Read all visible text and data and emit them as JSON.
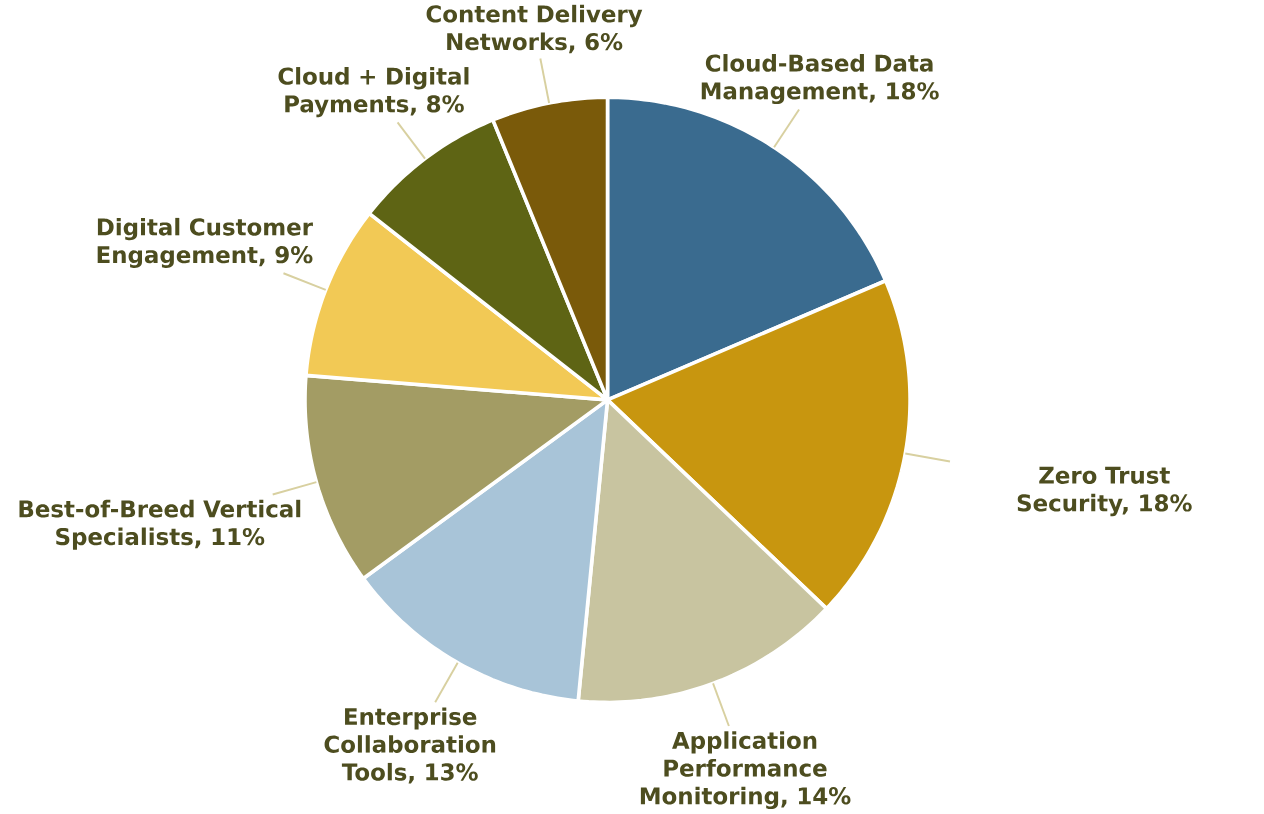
{
  "chart_data": {
    "type": "pie",
    "categories": [
      "Cloud-Based Data Management, 18%",
      "Zero Trust Security, 18%",
      "Application Performance Monitoring, 14%",
      "Enterprise Collaboration Tools, 13%",
      "Best-of-Breed Vertical Specialists, 11%",
      "Digital Customer Engagement, 9%",
      "Cloud + Digital Payments, 8%",
      "Content Delivery Networks, 6%"
    ],
    "values": [
      18,
      18,
      14,
      13,
      11,
      9,
      8,
      6
    ],
    "colors": [
      "#3a6b8f",
      "#c8960f",
      "#c8c4a0",
      "#a8c4d8",
      "#a39c64",
      "#f2c955",
      "#5e6414",
      "#7a5a0a"
    ]
  }
}
